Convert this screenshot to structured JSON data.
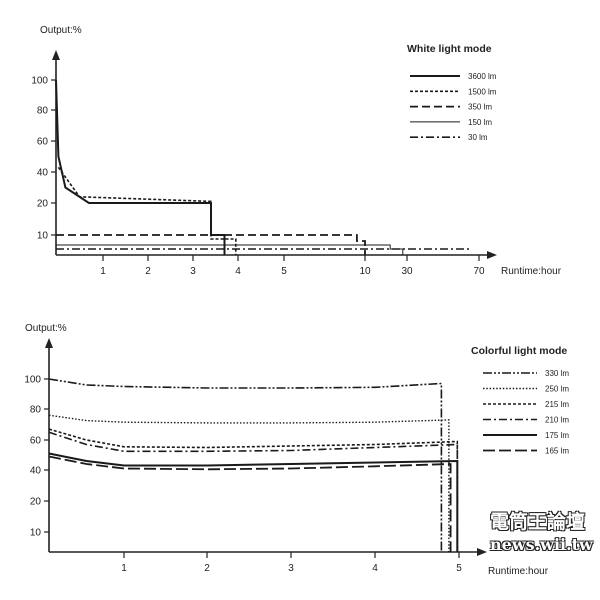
{
  "chart_data": [
    {
      "type": "line",
      "title": "White light mode",
      "ylabel": "Output:%",
      "xlabel": "Runtime:hour",
      "x_ticks": [
        "1",
        "2",
        "3",
        "4",
        "5",
        "10",
        "30",
        "70"
      ],
      "y_ticks": [
        "10",
        "20",
        "40",
        "60",
        "80",
        "100"
      ],
      "ylim": [
        0,
        100
      ],
      "grid": false,
      "legend_position": "top-right",
      "series": [
        {
          "name": "3600 lm",
          "points": [
            [
              0,
              100
            ],
            [
              0.05,
              50
            ],
            [
              0.2,
              30
            ],
            [
              0.7,
              20
            ],
            [
              3.4,
              20
            ],
            [
              3.4,
              10
            ],
            [
              3.7,
              10
            ],
            [
              3.7,
              0
            ]
          ]
        },
        {
          "name": "1500 lm",
          "points": [
            [
              0.05,
              43
            ],
            [
              0.5,
              24
            ],
            [
              3.4,
              21
            ],
            [
              3.4,
              8
            ],
            [
              3.95,
              8
            ],
            [
              3.95,
              0
            ]
          ]
        },
        {
          "name": "350 lm",
          "points": [
            [
              0,
              10
            ],
            [
              9.5,
              10
            ],
            [
              9.5,
              7
            ],
            [
              10,
              7
            ],
            [
              10,
              0
            ]
          ]
        },
        {
          "name": "150 lm",
          "points": [
            [
              0,
              5
            ],
            [
              22,
              5
            ],
            [
              22,
              3
            ],
            [
              28,
              3
            ],
            [
              28,
              0
            ]
          ]
        },
        {
          "name": "30 lm",
          "points": [
            [
              0,
              3
            ],
            [
              65,
              3
            ]
          ]
        }
      ]
    },
    {
      "type": "line",
      "title": "Colorful light mode",
      "ylabel": "Output:%",
      "xlabel": "Runtime:hour",
      "x_ticks": [
        "1",
        "2",
        "3",
        "4",
        "5"
      ],
      "y_ticks": [
        "10",
        "20",
        "40",
        "60",
        "80",
        "100"
      ],
      "ylim": [
        0,
        100
      ],
      "grid": false,
      "legend_position": "top-right",
      "series": [
        {
          "name": "330 lm",
          "points": [
            [
              0,
              100
            ],
            [
              0.5,
              96
            ],
            [
              1,
              95
            ],
            [
              2,
              94
            ],
            [
              3,
              94
            ],
            [
              4,
              94.5
            ],
            [
              4.79,
              97
            ],
            [
              4.79,
              0
            ]
          ]
        },
        {
          "name": "250 lm",
          "points": [
            [
              0,
              76
            ],
            [
              0.5,
              72.5
            ],
            [
              1,
              71.5
            ],
            [
              2,
              71
            ],
            [
              3,
              71
            ],
            [
              4,
              71.5
            ],
            [
              4.88,
              73
            ],
            [
              4.88,
              0
            ]
          ]
        },
        {
          "name": "215 lm",
          "points": [
            [
              0,
              67
            ],
            [
              0.5,
              60
            ],
            [
              1,
              55.5
            ],
            [
              2,
              55
            ],
            [
              3,
              56
            ],
            [
              4,
              57
            ],
            [
              4.98,
              59
            ],
            [
              4.98,
              0
            ]
          ]
        },
        {
          "name": "210 lm",
          "points": [
            [
              0,
              65
            ],
            [
              0.5,
              57
            ],
            [
              1,
              52.5
            ],
            [
              2,
              52.5
            ],
            [
              3,
              53
            ],
            [
              4,
              55
            ],
            [
              4.98,
              57
            ],
            [
              4.98,
              0
            ]
          ]
        },
        {
          "name": "175 lm",
          "points": [
            [
              0,
              51
            ],
            [
              0.5,
              46
            ],
            [
              1,
              43
            ],
            [
              2,
              43
            ],
            [
              3,
              44
            ],
            [
              4,
              45
            ],
            [
              4.98,
              46
            ],
            [
              4.98,
              0
            ]
          ]
        },
        {
          "name": "165 lm",
          "points": [
            [
              0,
              49
            ],
            [
              0.5,
              44
            ],
            [
              1,
              41
            ],
            [
              2,
              40.5
            ],
            [
              3,
              41
            ],
            [
              4,
              42.5
            ],
            [
              4.9,
              44
            ],
            [
              4.9,
              0
            ]
          ]
        }
      ]
    }
  ],
  "watermark": {
    "line1": "電筒王論壇",
    "line2": "news.wii.tw"
  }
}
